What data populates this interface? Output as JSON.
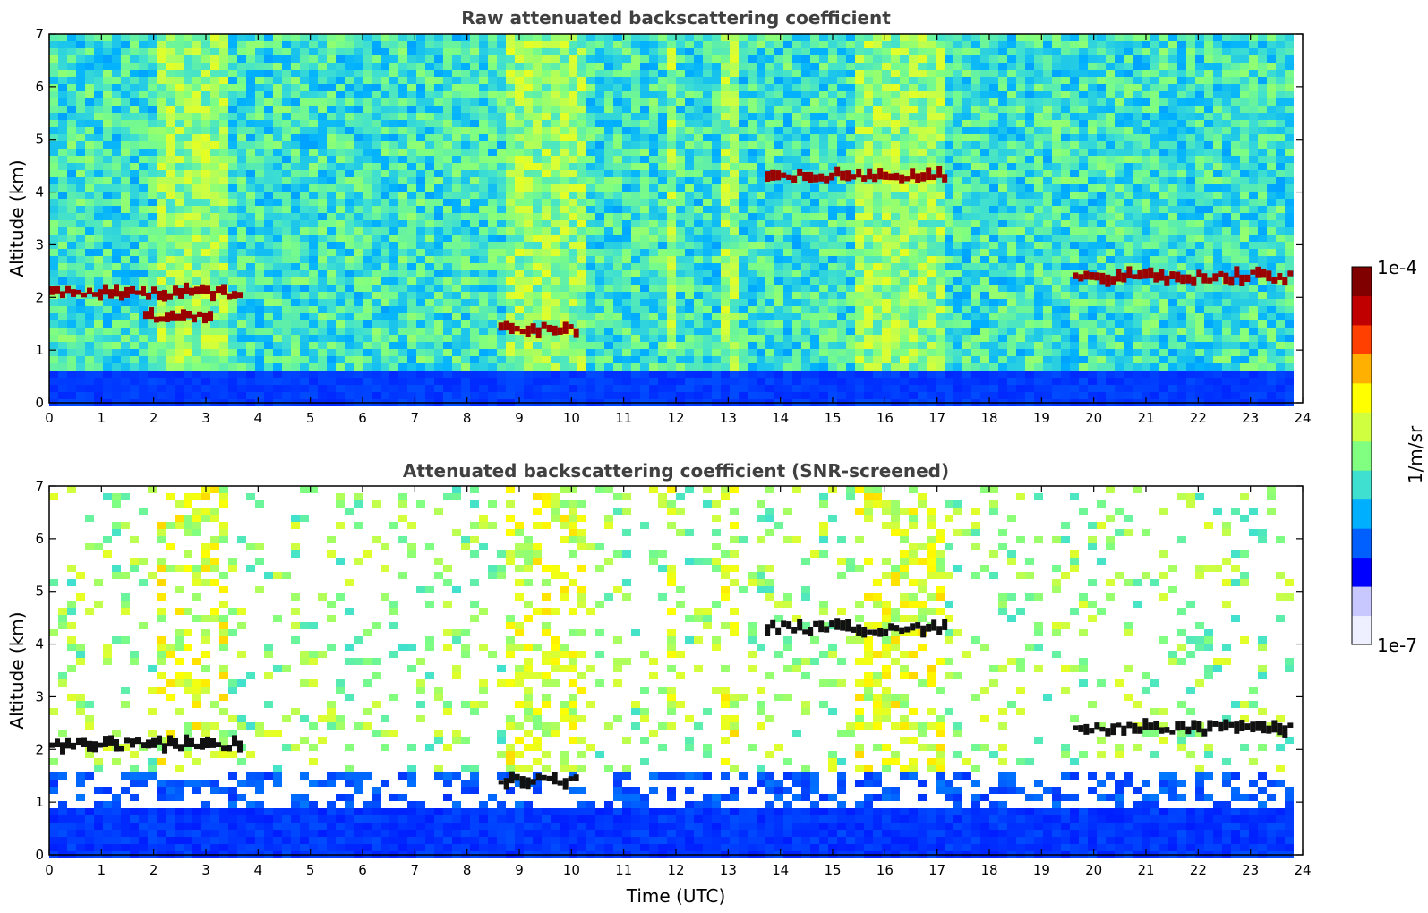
{
  "chart_data": [
    {
      "type": "heatmap",
      "title": "Raw attenuated backscattering coefficient",
      "xlabel": "",
      "ylabel": "Altitude (km)",
      "xlim": [
        0,
        24
      ],
      "ylim": [
        0,
        7
      ],
      "xticks": [
        "0",
        "1",
        "2",
        "3",
        "4",
        "5",
        "6",
        "7",
        "8",
        "9",
        "10",
        "11",
        "12",
        "13",
        "14",
        "15",
        "16",
        "17",
        "18",
        "19",
        "20",
        "21",
        "22",
        "23",
        "24"
      ],
      "yticks": [
        "0",
        "1",
        "2",
        "3",
        "4",
        "5",
        "6",
        "7"
      ],
      "grid": false,
      "features": [
        {
          "kind": "cloud_layer",
          "x_start": 0.0,
          "x_end": 3.7,
          "altitude_km": 2.1
        },
        {
          "kind": "cloud_layer",
          "x_start": 1.8,
          "x_end": 3.1,
          "altitude_km": 1.65
        },
        {
          "kind": "cloud_layer",
          "x_start": 8.6,
          "x_end": 10.1,
          "altitude_km": 1.4
        },
        {
          "kind": "cloud_layer",
          "x_start": 13.7,
          "x_end": 17.1,
          "altitude_km": 4.3
        },
        {
          "kind": "cloud_layer",
          "x_start": 19.6,
          "x_end": 23.8,
          "altitude_km": 2.4
        },
        {
          "kind": "boundary_layer",
          "x_start": 0.0,
          "x_end": 23.8,
          "altitude_km": 0.6
        }
      ]
    },
    {
      "type": "heatmap",
      "title": "Attenuated backscattering coefficient (SNR-screened)",
      "xlabel": "Time (UTC)",
      "ylabel": "Altitude (km)",
      "xlim": [
        0,
        24
      ],
      "ylim": [
        0,
        7
      ],
      "xticks": [
        "0",
        "1",
        "2",
        "3",
        "4",
        "5",
        "6",
        "7",
        "8",
        "9",
        "10",
        "11",
        "12",
        "13",
        "14",
        "15",
        "16",
        "17",
        "18",
        "19",
        "20",
        "21",
        "22",
        "23",
        "24"
      ],
      "yticks": [
        "0",
        "1",
        "2",
        "3",
        "4",
        "5",
        "6",
        "7"
      ],
      "grid": false,
      "features": [
        {
          "kind": "cloud_layer",
          "x_start": 0.0,
          "x_end": 3.7,
          "altitude_km": 2.1
        },
        {
          "kind": "cloud_layer",
          "x_start": 8.6,
          "x_end": 10.1,
          "altitude_km": 1.4
        },
        {
          "kind": "cloud_layer",
          "x_start": 13.7,
          "x_end": 17.1,
          "altitude_km": 4.3
        },
        {
          "kind": "cloud_layer",
          "x_start": 19.6,
          "x_end": 23.8,
          "altitude_km": 2.4
        },
        {
          "kind": "boundary_layer",
          "x_start": 0.0,
          "x_end": 23.8,
          "altitude_km": 1.2
        }
      ]
    }
  ],
  "colorbar": {
    "label": "1/m/sr",
    "max_label": "1e-4",
    "min_label": "1e-7",
    "scale": "log",
    "colors": [
      "#eef0ff",
      "#c8c8ff",
      "#0000ff",
      "#0060ff",
      "#00b0ff",
      "#40e0d0",
      "#80ff80",
      "#d0ff40",
      "#ffff00",
      "#ffb000",
      "#ff4000",
      "#c00000",
      "#800000"
    ]
  }
}
